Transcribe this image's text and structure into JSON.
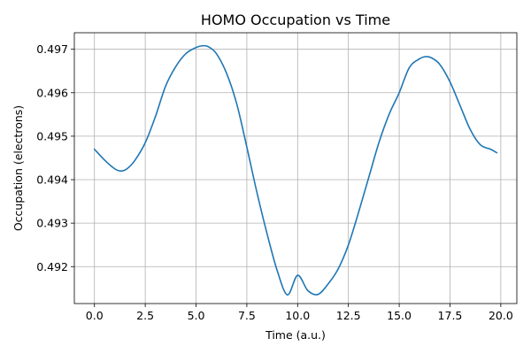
{
  "chart_data": {
    "type": "line",
    "title": "HOMO Occupation vs Time",
    "xlabel": "Time (a.u.)",
    "ylabel": "Occupation (electrons)",
    "xlim": [
      -0.99,
      20.79
    ],
    "ylim": [
      0.49115,
      0.49738
    ],
    "xticks": [
      "0.0",
      "2.5",
      "5.0",
      "7.5",
      "10.0",
      "12.5",
      "15.0",
      "17.5",
      "20.0"
    ],
    "yticks": [
      "0.492",
      "0.493",
      "0.494",
      "0.495",
      "0.496",
      "0.497"
    ],
    "grid": true,
    "series": [
      {
        "color": "#1f77b4",
        "x": [
          0.0,
          0.5,
          1.0,
          1.3,
          1.6,
          2.0,
          2.5,
          3.0,
          3.5,
          4.0,
          4.5,
          5.0,
          5.3,
          5.6,
          6.0,
          6.5,
          7.0,
          7.5,
          8.0,
          8.5,
          9.0,
          9.5,
          10.0,
          10.5,
          11.0,
          11.5,
          12.0,
          12.5,
          13.0,
          13.5,
          14.0,
          14.5,
          15.0,
          15.5,
          16.0,
          16.3,
          16.6,
          17.0,
          17.5,
          18.0,
          18.5,
          19.0,
          19.5,
          19.8
        ],
        "y": [
          0.4947,
          0.49445,
          0.49425,
          0.4942,
          0.49425,
          0.49445,
          0.49485,
          0.49545,
          0.49615,
          0.4966,
          0.4969,
          0.49704,
          0.49708,
          0.49706,
          0.4969,
          0.49645,
          0.49575,
          0.49475,
          0.4937,
          0.49275,
          0.4919,
          0.49135,
          0.4918,
          0.49145,
          0.49136,
          0.4916,
          0.49195,
          0.4925,
          0.49325,
          0.49405,
          0.49485,
          0.4955,
          0.496,
          0.49658,
          0.49678,
          0.49683,
          0.4968,
          0.49665,
          0.49625,
          0.4957,
          0.49515,
          0.4948,
          0.4947,
          0.49462
        ]
      }
    ]
  }
}
